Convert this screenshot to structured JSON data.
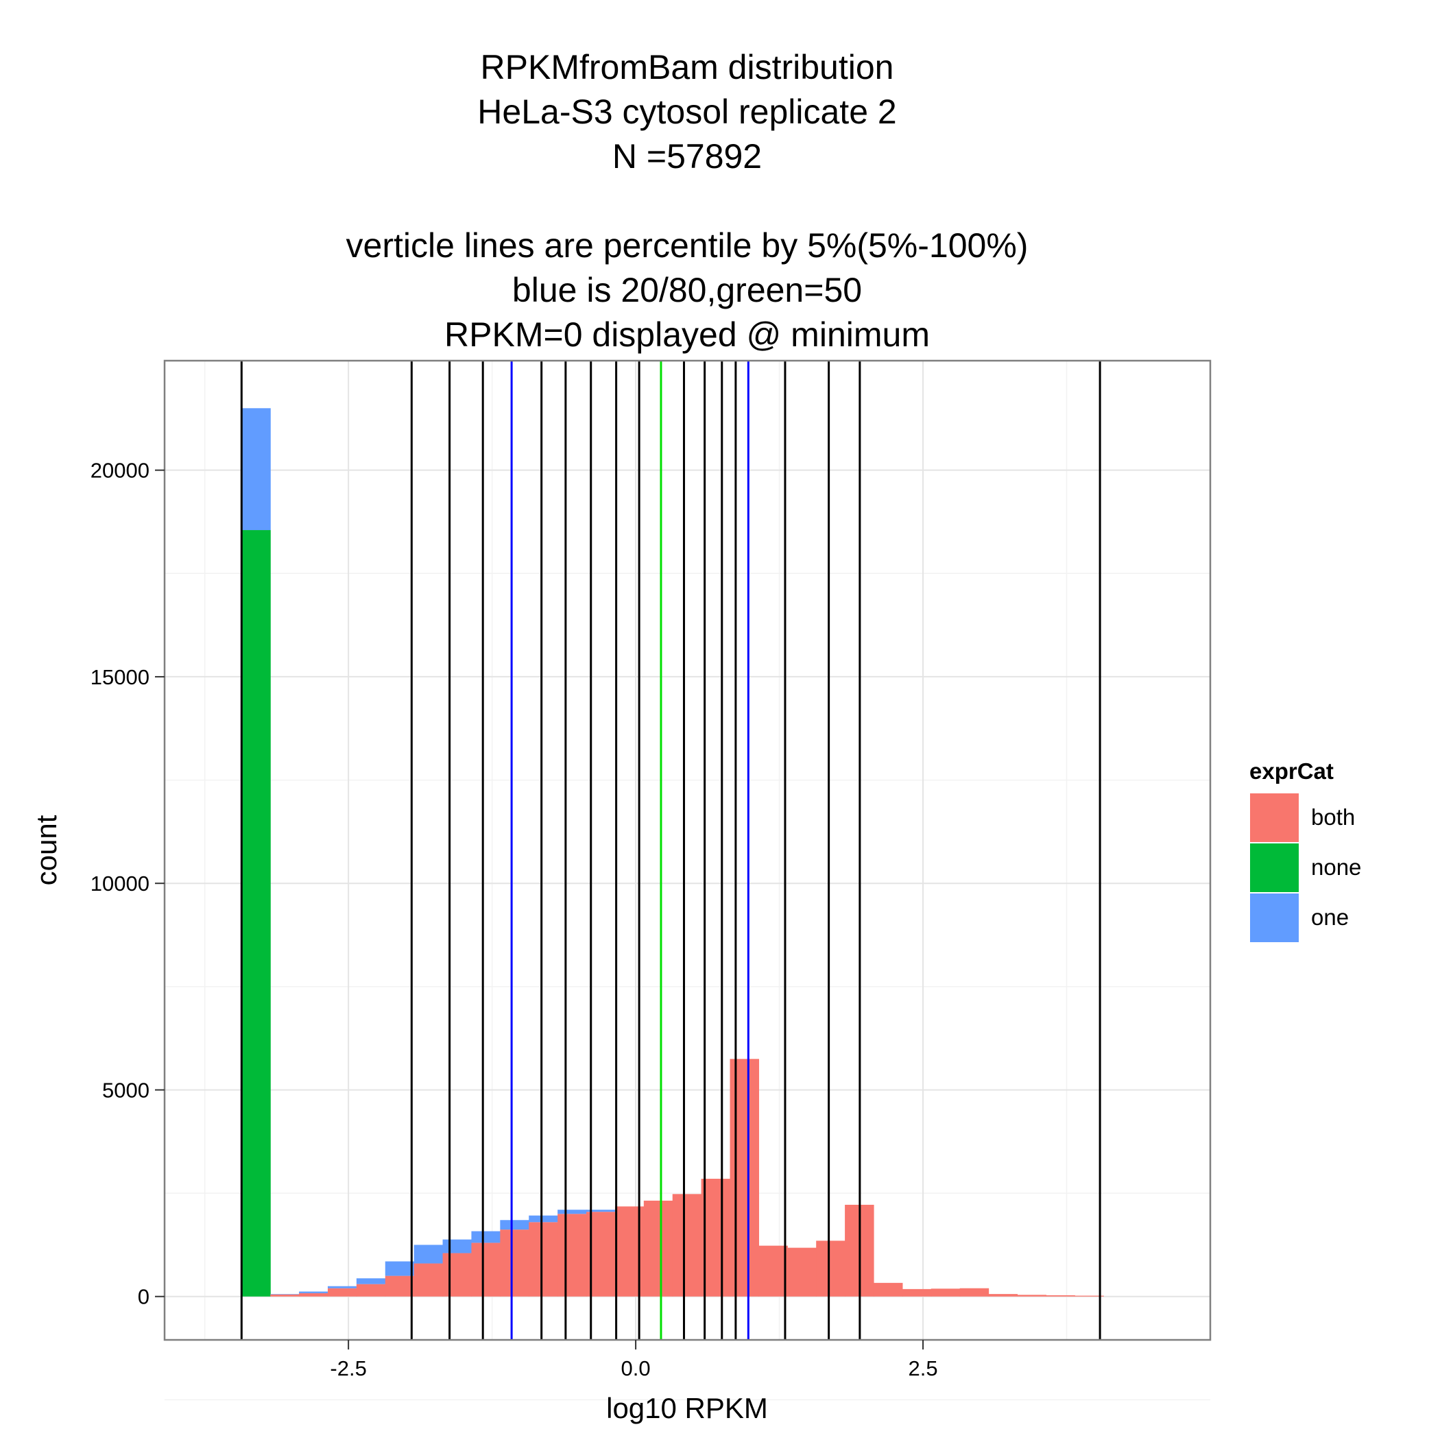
{
  "chart_data": {
    "type": "bar",
    "subtype": "stacked-histogram",
    "title_lines": [
      "RPKMfromBam distribution",
      "HeLa-S3 cytosol replicate 2",
      "N =57892",
      "",
      "verticle lines are percentile by 5%(5%-100%)",
      "blue is 20/80,green=50",
      "RPKM=0 displayed @ minimum"
    ],
    "xlabel": "log10 RPKM",
    "ylabel": "count",
    "xlim": [
      -4.1,
      5.0
    ],
    "ylim": [
      -1050,
      22650
    ],
    "x_ticks": [
      -2.5,
      0.0,
      2.5
    ],
    "x_tick_labels": [
      "-2.5",
      "0.0",
      "2.5"
    ],
    "y_ticks": [
      0,
      5000,
      10000,
      15000,
      20000
    ],
    "y_tick_labels": [
      "0",
      "5000",
      "10000",
      "15000",
      "20000"
    ],
    "grid": true,
    "legend": {
      "title": "exprCat",
      "placement": "right"
    },
    "bin_edges": [
      -3.43,
      -3.18,
      -2.93,
      -2.68,
      -2.43,
      -2.18,
      -1.93,
      -1.68,
      -1.43,
      -1.18,
      -0.93,
      -0.68,
      -0.43,
      -0.18,
      0.07,
      0.32,
      0.57,
      0.82,
      1.07,
      1.32,
      1.57,
      1.82,
      2.07,
      2.32,
      2.57,
      2.82,
      3.07,
      3.32,
      3.57,
      3.82,
      4.07
    ],
    "series": [
      {
        "name": "both",
        "color": "#F8766D",
        "values": [
          0,
          50,
          80,
          200,
          300,
          500,
          800,
          1050,
          1300,
          1620,
          1800,
          2000,
          2050,
          2180,
          2320,
          2480,
          2850,
          5750,
          1230,
          1180,
          1350,
          2220,
          330,
          180,
          190,
          200,
          60,
          40,
          30,
          20
        ]
      },
      {
        "name": "none",
        "color": "#00BA38",
        "values": [
          18550,
          0,
          0,
          0,
          0,
          0,
          0,
          0,
          0,
          0,
          0,
          0,
          0,
          0,
          0,
          0,
          0,
          0,
          0,
          0,
          0,
          0,
          0,
          0,
          0,
          0,
          0,
          0,
          0,
          0
        ]
      },
      {
        "name": "one",
        "color": "#619CFF",
        "values": [
          2950,
          10,
          40,
          50,
          140,
          350,
          450,
          330,
          280,
          230,
          160,
          100,
          50,
          0,
          0,
          0,
          0,
          0,
          0,
          0,
          0,
          0,
          0,
          0,
          0,
          0,
          0,
          0,
          0,
          0
        ]
      }
    ],
    "percentile_lines": [
      {
        "x": -3.43,
        "color": "#000000"
      },
      {
        "x": -1.95,
        "color": "#000000"
      },
      {
        "x": -1.62,
        "color": "#000000"
      },
      {
        "x": -1.33,
        "color": "#000000"
      },
      {
        "x": -1.08,
        "color": "#0000FF"
      },
      {
        "x": -0.82,
        "color": "#000000"
      },
      {
        "x": -0.61,
        "color": "#000000"
      },
      {
        "x": -0.39,
        "color": "#000000"
      },
      {
        "x": -0.17,
        "color": "#000000"
      },
      {
        "x": 0.03,
        "color": "#000000"
      },
      {
        "x": 0.22,
        "color": "#00E000"
      },
      {
        "x": 0.42,
        "color": "#000000"
      },
      {
        "x": 0.6,
        "color": "#000000"
      },
      {
        "x": 0.75,
        "color": "#000000"
      },
      {
        "x": 0.87,
        "color": "#000000"
      },
      {
        "x": 0.98,
        "color": "#0000FF"
      },
      {
        "x": 1.3,
        "color": "#000000"
      },
      {
        "x": 1.68,
        "color": "#000000"
      },
      {
        "x": 1.95,
        "color": "#000000"
      },
      {
        "x": 4.04,
        "color": "#000000"
      }
    ]
  }
}
